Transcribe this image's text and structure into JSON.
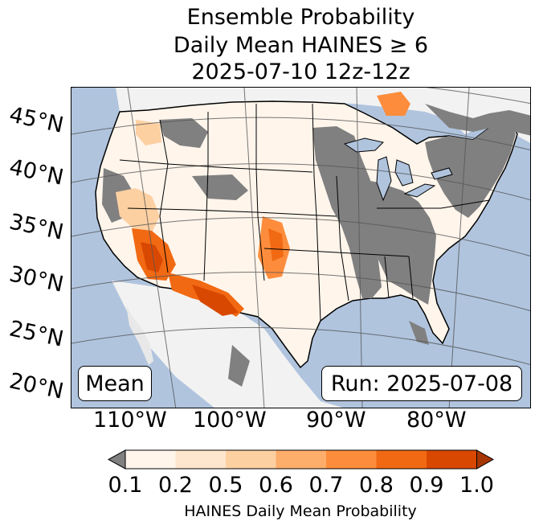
{
  "title": {
    "line1": "Ensemble Probability",
    "line2": "Daily Mean HAINES ≥ 6",
    "line3": "2025-07-10 12z-12z"
  },
  "map": {
    "ocean_color": "#b0c4de",
    "land_low_color": "#808080",
    "lat_labels": [
      "45°N",
      "40°N",
      "35°N",
      "30°N",
      "25°N",
      "20°N"
    ],
    "lon_labels": [
      "110°W",
      "100°W",
      "90°W",
      "80°W"
    ],
    "left_box": "Mean",
    "right_box": "Run: 2025-07-08"
  },
  "colorbar": {
    "ticks": [
      "0.1",
      "0.2",
      "0.5",
      "0.6",
      "0.7",
      "0.8",
      "0.9",
      "1.0"
    ],
    "colors": [
      "#fff5eb",
      "#fee6ce",
      "#fdd0a2",
      "#fdae6b",
      "#fd8d3c",
      "#f16913",
      "#d94801"
    ],
    "under_color": "#808080",
    "over_color": "#a63603",
    "label": "HAINES Daily Mean Probability"
  }
}
